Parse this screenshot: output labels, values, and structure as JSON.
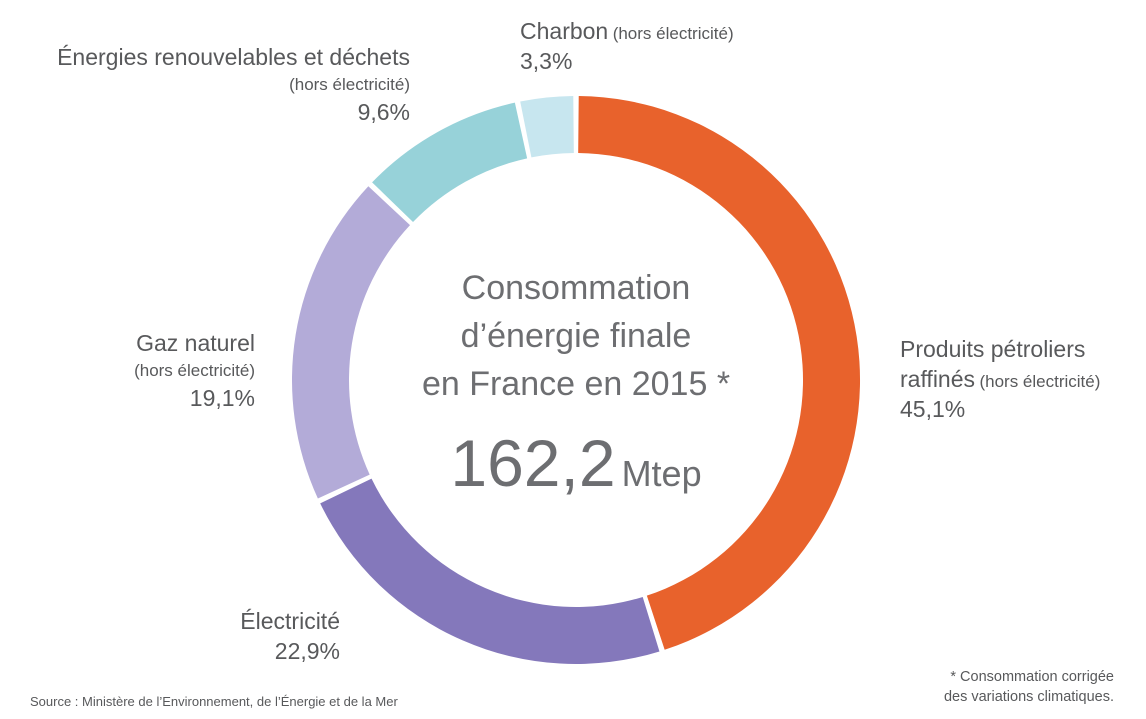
{
  "chart_data": {
    "type": "pie",
    "subtype": "donut",
    "title": "Consommation d’énergie finale en France en 2015 *",
    "center": {
      "title_lines": [
        "Consommation",
        "d’énergie finale",
        "en France en 2015 *"
      ],
      "value": "162,2",
      "unit": "Mtep"
    },
    "total": "162,2 Mtep",
    "legend_position": "around",
    "segments": [
      {
        "id": "produits-petroliers",
        "label": "Produits pétroliers",
        "label_line2": "raffinés",
        "sublabel": "(hors électricité)",
        "value": 45.1,
        "pct_text": "45,1%",
        "color": "#e8622c"
      },
      {
        "id": "electricite",
        "label": "Électricité",
        "sublabel": "",
        "value": 22.9,
        "pct_text": "22,9%",
        "color": "#8478bb"
      },
      {
        "id": "gaz-naturel",
        "label": "Gaz naturel",
        "sublabel": "(hors électricité)",
        "value": 19.1,
        "pct_text": "19,1%",
        "color": "#b3abd8"
      },
      {
        "id": "energies-renouvelables",
        "label": "Énergies renouvelables et déchets",
        "sublabel": "(hors électricité)",
        "value": 9.6,
        "pct_text": "9,6%",
        "color": "#97d2d9"
      },
      {
        "id": "charbon",
        "label": "Charbon",
        "sublabel": "(hors électricité)",
        "value": 3.3,
        "pct_text": "3,3%",
        "color": "#c7e6ef"
      }
    ],
    "source": "Source : Ministère de l’Environnement, de l’Énergie et de la Mer",
    "footnote_lines": [
      "* Consommation corrigée",
      "des variations climatiques."
    ]
  }
}
